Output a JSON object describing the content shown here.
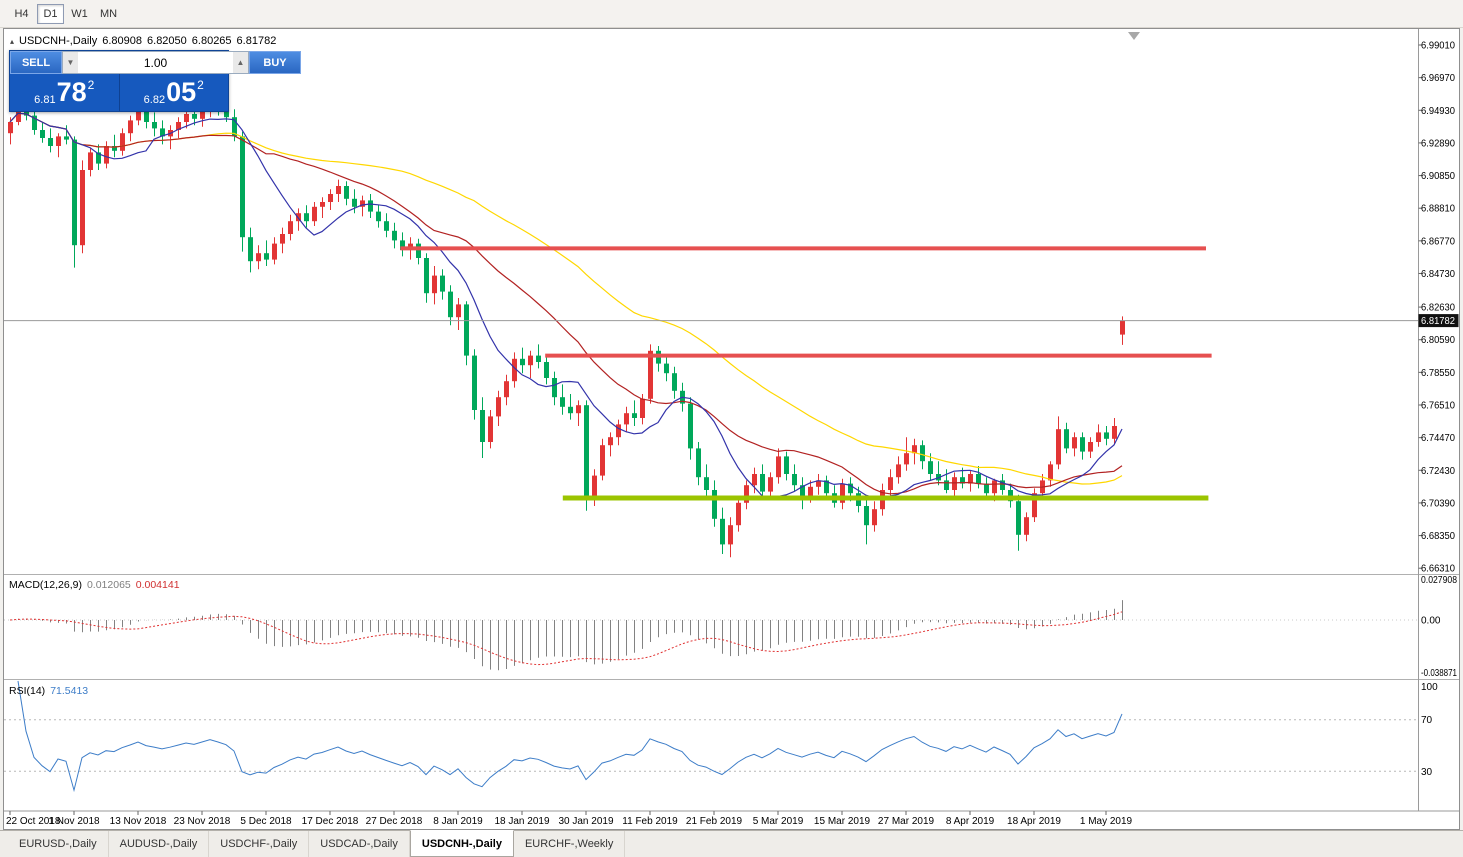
{
  "toolbar": {
    "timeframes": [
      {
        "label": "H4",
        "active": false
      },
      {
        "label": "D1",
        "active": true
      },
      {
        "label": "W1",
        "active": false
      },
      {
        "label": "MN",
        "active": false
      }
    ]
  },
  "chart_header": {
    "collapse_icon": "▴",
    "title": "USDCNH-,Daily",
    "open": "6.80908",
    "high": "6.82050",
    "low": "6.80265",
    "close": "6.81782"
  },
  "trade_widget": {
    "sell_label": "SELL",
    "buy_label": "BUY",
    "volume": "1.00",
    "sell_price": {
      "small": "6.81",
      "big": "78",
      "sup": "2"
    },
    "buy_price": {
      "small": "6.82",
      "big": "05",
      "sup": "2"
    }
  },
  "price_axis": {
    "labels": [
      "6.99010",
      "6.96970",
      "6.94930",
      "6.92890",
      "6.90850",
      "6.88810",
      "6.86770",
      "6.84730",
      "6.82630",
      "6.80590",
      "6.78550",
      "6.76510",
      "6.74470",
      "6.72430",
      "6.70390",
      "6.68350",
      "6.66310"
    ]
  },
  "date_axis": {
    "labels": [
      {
        "text": "22 Oct 2018",
        "i": 0
      },
      {
        "text": "1 Nov 2018",
        "i": 8
      },
      {
        "text": "13 Nov 2018",
        "i": 16
      },
      {
        "text": "23 Nov 2018",
        "i": 24
      },
      {
        "text": "5 Dec 2018",
        "i": 32
      },
      {
        "text": "17 Dec 2018",
        "i": 40
      },
      {
        "text": "27 Dec 2018",
        "i": 48
      },
      {
        "text": "8 Jan 2019",
        "i": 56
      },
      {
        "text": "18 Jan 2019",
        "i": 64
      },
      {
        "text": "30 Jan 2019",
        "i": 72
      },
      {
        "text": "11 Feb 2019",
        "i": 80
      },
      {
        "text": "21 Feb 2019",
        "i": 88
      },
      {
        "text": "5 Mar 2019",
        "i": 96
      },
      {
        "text": "15 Mar 2019",
        "i": 104
      },
      {
        "text": "27 Mar 2019",
        "i": 112
      },
      {
        "text": "8 Apr 2019",
        "i": 120
      },
      {
        "text": "18 Apr 2019",
        "i": 128
      },
      {
        "text": "1 May 2019",
        "i": 137
      }
    ]
  },
  "macd_panel": {
    "label": "MACD(12,26,9)",
    "value": "0.012065",
    "signal_value": "0.004141",
    "axis": [
      "0.027908",
      "0.00",
      "-0.038871"
    ],
    "fast": 12,
    "slow": 26,
    "signal": 9
  },
  "rsi_panel": {
    "label": "RSI(14)",
    "value": "71.5413",
    "axis": [
      "100",
      "70",
      "30"
    ],
    "period": 14,
    "levels": [
      70,
      30
    ]
  },
  "bottom_tabs": {
    "tabs": [
      {
        "label": "EURUSD-,Daily",
        "active": false
      },
      {
        "label": "AUDUSD-,Daily",
        "active": false
      },
      {
        "label": "USDCHF-,Daily",
        "active": false
      },
      {
        "label": "USDCAD-,Daily",
        "active": false
      },
      {
        "label": "USDCNH-,Daily",
        "active": true
      },
      {
        "label": "EURCHF-,Weekly",
        "active": false
      }
    ]
  },
  "chart_data": {
    "type": "candlestick",
    "symbol": "USDCNH",
    "timeframe": "Daily",
    "title": "USDCNH-,Daily",
    "up_color": "#e23535",
    "down_color": "#00a85a",
    "last_price": 6.81782,
    "last_price_label": "6.81782",
    "price_view": {
      "top": 6.9901,
      "bottom": 6.6631
    },
    "moving_averages": [
      {
        "period": 50,
        "color": "#ffd700"
      },
      {
        "period": 25,
        "color": "#b22222"
      },
      {
        "period": 10,
        "color": "#3333aa"
      }
    ],
    "horizontal_lines": [
      {
        "name": "resistance-line-upper",
        "price": 6.863,
        "from": 48.8,
        "to": 149.5,
        "color": "#e65050",
        "width": 4
      },
      {
        "name": "resistance-line-lower",
        "price": 6.796,
        "from": 66.9,
        "to": 150.2,
        "color": "#e65050",
        "width": 4
      },
      {
        "name": "support-line",
        "price": 6.707,
        "from": 69.1,
        "to": 149.8,
        "color": "#9bc400",
        "width": 5
      }
    ],
    "candles": [
      [
        6.935,
        6.945,
        6.928,
        6.942
      ],
      [
        6.942,
        6.956,
        6.94,
        6.953
      ],
      [
        6.953,
        6.956,
        6.943,
        6.946
      ],
      [
        6.946,
        6.95,
        6.934,
        6.937
      ],
      [
        6.937,
        6.942,
        6.929,
        6.932
      ],
      [
        6.932,
        6.938,
        6.923,
        6.927
      ],
      [
        6.927,
        6.935,
        6.92,
        6.933
      ],
      [
        6.933,
        6.94,
        6.928,
        6.931
      ],
      [
        6.931,
        6.933,
        6.851,
        6.865
      ],
      [
        6.865,
        6.918,
        6.86,
        6.912
      ],
      [
        6.912,
        6.926,
        6.908,
        6.923
      ],
      [
        6.923,
        6.928,
        6.912,
        6.916
      ],
      [
        6.916,
        6.93,
        6.913,
        6.927
      ],
      [
        6.927,
        6.934,
        6.92,
        6.924
      ],
      [
        6.924,
        6.938,
        6.921,
        6.935
      ],
      [
        6.935,
        6.946,
        6.93,
        6.943
      ],
      [
        6.943,
        6.956,
        6.94,
        6.952
      ],
      [
        6.952,
        6.955,
        6.938,
        6.942
      ],
      [
        6.942,
        6.948,
        6.933,
        6.938
      ],
      [
        6.938,
        6.943,
        6.928,
        6.933
      ],
      [
        6.933,
        6.94,
        6.925,
        6.937
      ],
      [
        6.937,
        6.945,
        6.932,
        6.942
      ],
      [
        6.942,
        6.95,
        6.938,
        6.947
      ],
      [
        6.947,
        6.953,
        6.94,
        6.944
      ],
      [
        6.944,
        6.952,
        6.939,
        6.949
      ],
      [
        6.949,
        6.958,
        6.945,
        6.954
      ],
      [
        6.954,
        6.958,
        6.946,
        6.95
      ],
      [
        6.95,
        6.956,
        6.942,
        6.945
      ],
      [
        6.945,
        6.95,
        6.93,
        6.933
      ],
      [
        6.933,
        6.936,
        6.861,
        6.87
      ],
      [
        6.87,
        6.876,
        6.848,
        6.855
      ],
      [
        6.855,
        6.865,
        6.85,
        6.86
      ],
      [
        6.86,
        6.868,
        6.852,
        6.856
      ],
      [
        6.856,
        6.87,
        6.853,
        6.866
      ],
      [
        6.866,
        6.876,
        6.86,
        6.872
      ],
      [
        6.872,
        6.884,
        6.868,
        6.88
      ],
      [
        6.88,
        6.888,
        6.874,
        6.885
      ],
      [
        6.885,
        6.89,
        6.876,
        6.88
      ],
      [
        6.88,
        6.892,
        6.877,
        6.889
      ],
      [
        6.889,
        6.895,
        6.882,
        6.892
      ],
      [
        6.892,
        6.9,
        6.887,
        6.897
      ],
      [
        6.897,
        6.906,
        6.892,
        6.902
      ],
      [
        6.902,
        6.905,
        6.89,
        6.894
      ],
      [
        6.894,
        6.9,
        6.885,
        6.889
      ],
      [
        6.889,
        6.896,
        6.883,
        6.893
      ],
      [
        6.893,
        6.897,
        6.882,
        6.886
      ],
      [
        6.886,
        6.89,
        6.876,
        6.88
      ],
      [
        6.88,
        6.885,
        6.87,
        6.874
      ],
      [
        6.874,
        6.879,
        6.863,
        6.868
      ],
      [
        6.868,
        6.873,
        6.858,
        6.862
      ],
      [
        6.862,
        6.87,
        6.856,
        6.866
      ],
      [
        6.866,
        6.869,
        6.853,
        6.857
      ],
      [
        6.857,
        6.86,
        6.829,
        6.835
      ],
      [
        6.835,
        6.852,
        6.828,
        6.846
      ],
      [
        6.846,
        6.85,
        6.831,
        6.836
      ],
      [
        6.836,
        6.84,
        6.815,
        6.82
      ],
      [
        6.82,
        6.832,
        6.812,
        6.828
      ],
      [
        6.828,
        6.83,
        6.79,
        6.796
      ],
      [
        6.796,
        6.8,
        6.756,
        6.762
      ],
      [
        6.762,
        6.77,
        6.732,
        6.742
      ],
      [
        6.742,
        6.762,
        6.738,
        6.758
      ],
      [
        6.758,
        6.774,
        6.752,
        6.77
      ],
      [
        6.77,
        6.784,
        6.765,
        6.78
      ],
      [
        6.78,
        6.798,
        6.776,
        6.794
      ],
      [
        6.794,
        6.801,
        6.785,
        6.79
      ],
      [
        6.79,
        6.799,
        6.782,
        6.796
      ],
      [
        6.796,
        6.803,
        6.788,
        6.792
      ],
      [
        6.792,
        6.795,
        6.778,
        6.782
      ],
      [
        6.782,
        6.786,
        6.765,
        6.77
      ],
      [
        6.77,
        6.778,
        6.759,
        6.764
      ],
      [
        6.764,
        6.772,
        6.756,
        6.76
      ],
      [
        6.76,
        6.768,
        6.752,
        6.765
      ],
      [
        6.765,
        6.768,
        6.699,
        6.706
      ],
      [
        6.706,
        6.725,
        6.702,
        6.721
      ],
      [
        6.721,
        6.744,
        6.718,
        6.74
      ],
      [
        6.74,
        6.748,
        6.733,
        6.745
      ],
      [
        6.745,
        6.756,
        6.74,
        6.753
      ],
      [
        6.753,
        6.764,
        6.748,
        6.76
      ],
      [
        6.76,
        6.768,
        6.752,
        6.757
      ],
      [
        6.757,
        6.772,
        6.753,
        6.769
      ],
      [
        6.769,
        6.803,
        6.766,
        6.799
      ],
      [
        6.799,
        6.802,
        6.786,
        6.791
      ],
      [
        6.791,
        6.796,
        6.78,
        6.785
      ],
      [
        6.785,
        6.789,
        6.769,
        6.774
      ],
      [
        6.774,
        6.779,
        6.761,
        6.766
      ],
      [
        6.766,
        6.77,
        6.731,
        6.738
      ],
      [
        6.738,
        6.742,
        6.715,
        6.72
      ],
      [
        6.72,
        6.728,
        6.708,
        6.712
      ],
      [
        6.712,
        6.718,
        6.689,
        6.694
      ],
      [
        6.694,
        6.701,
        6.672,
        6.678
      ],
      [
        6.678,
        6.695,
        6.67,
        6.69
      ],
      [
        6.69,
        6.708,
        6.686,
        6.704
      ],
      [
        6.704,
        6.718,
        6.7,
        6.715
      ],
      [
        6.715,
        6.726,
        6.71,
        6.722
      ],
      [
        6.722,
        6.728,
        6.706,
        6.711
      ],
      [
        6.711,
        6.723,
        6.707,
        6.72
      ],
      [
        6.72,
        6.738,
        6.716,
        6.733
      ],
      [
        6.733,
        6.736,
        6.718,
        6.722
      ],
      [
        6.722,
        6.728,
        6.711,
        6.715
      ],
      [
        6.715,
        6.72,
        6.7,
        6.708
      ],
      [
        6.708,
        6.718,
        6.704,
        6.714
      ],
      [
        6.714,
        6.722,
        6.709,
        6.718
      ],
      [
        6.718,
        6.721,
        6.706,
        6.71
      ],
      [
        6.71,
        6.715,
        6.701,
        6.704
      ],
      [
        6.704,
        6.719,
        6.7,
        6.716
      ],
      [
        6.716,
        6.72,
        6.705,
        6.71
      ],
      [
        6.71,
        6.714,
        6.698,
        6.702
      ],
      [
        6.702,
        6.708,
        6.678,
        6.69
      ],
      [
        6.69,
        6.705,
        6.686,
        6.7
      ],
      [
        6.7,
        6.716,
        6.696,
        6.712
      ],
      [
        6.712,
        6.725,
        6.708,
        6.72
      ],
      [
        6.72,
        6.733,
        6.716,
        6.728
      ],
      [
        6.728,
        6.745,
        6.724,
        6.735
      ],
      [
        6.735,
        6.744,
        6.728,
        6.74
      ],
      [
        6.74,
        6.743,
        6.725,
        6.73
      ],
      [
        6.73,
        6.735,
        6.718,
        6.722
      ],
      [
        6.722,
        6.73,
        6.715,
        6.718
      ],
      [
        6.718,
        6.725,
        6.71,
        6.712
      ],
      [
        6.712,
        6.723,
        6.708,
        6.72
      ],
      [
        6.72,
        6.726,
        6.713,
        6.716
      ],
      [
        6.716,
        6.724,
        6.711,
        6.722
      ],
      [
        6.722,
        6.727,
        6.713,
        6.716
      ],
      [
        6.716,
        6.72,
        6.706,
        6.71
      ],
      [
        6.71,
        6.719,
        6.705,
        6.718
      ],
      [
        6.718,
        6.722,
        6.709,
        6.712
      ],
      [
        6.712,
        6.716,
        6.701,
        6.705
      ],
      [
        6.705,
        6.709,
        6.674,
        6.684
      ],
      [
        6.684,
        6.698,
        6.68,
        6.695
      ],
      [
        6.695,
        6.713,
        6.692,
        6.71
      ],
      [
        6.71,
        6.722,
        6.706,
        6.718
      ],
      [
        6.718,
        6.73,
        6.714,
        6.728
      ],
      [
        6.728,
        6.758,
        6.725,
        6.75
      ],
      [
        6.75,
        6.754,
        6.735,
        6.738
      ],
      [
        6.738,
        6.748,
        6.733,
        6.745
      ],
      [
        6.745,
        6.748,
        6.731,
        6.736
      ],
      [
        6.736,
        6.745,
        6.732,
        6.742
      ],
      [
        6.742,
        6.753,
        6.739,
        6.748
      ],
      [
        6.748,
        6.752,
        6.74,
        6.744
      ],
      [
        6.744,
        6.757,
        6.741,
        6.752
      ],
      [
        6.80908,
        6.8205,
        6.80265,
        6.81782
      ]
    ]
  }
}
